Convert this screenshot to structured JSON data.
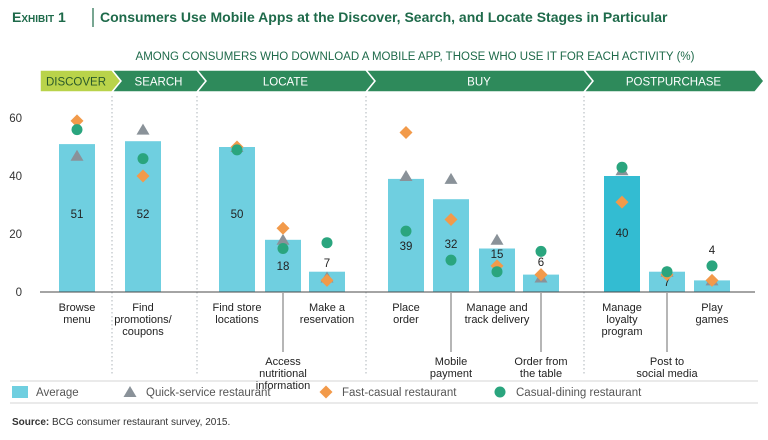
{
  "exhibit": {
    "label": "Exhibit 1",
    "title": "Consumers Use Mobile Apps at the Discover, Search, and Locate Stages in Particular"
  },
  "subtitle": "AMONG CONSUMERS WHO DOWNLOAD A MOBILE APP, THOSE WHO USE IT FOR EACH ACTIVITY (%)",
  "stages": [
    "DISCOVER",
    "SEARCH",
    "LOCATE",
    "BUY",
    "POSTPURCHASE"
  ],
  "source": {
    "label": "Source:",
    "text": " BCG consumer restaurant survey, 2015."
  },
  "colors": {
    "bar": "#6fcfe0",
    "bar_alt": "#33bcd2",
    "quick_service": "#8a9299",
    "fast_casual": "#f29a4a",
    "casual_dining": "#2aa57e",
    "chevron": "#2e8a5b",
    "chevron_first": "#b9d34a",
    "title_accent": "#1e6a4a"
  },
  "chart_data": {
    "type": "bar",
    "categories": [
      [
        "Browse",
        "menu"
      ],
      [
        "Find",
        "promotions/",
        "coupons"
      ],
      [
        "Find store",
        "locations"
      ],
      [
        "Access",
        "nutritional",
        "information"
      ],
      [
        "Make a",
        "reservation"
      ],
      [
        "Place",
        "order"
      ],
      [
        "Mobile",
        "payment"
      ],
      [
        "Manage and",
        "track delivery"
      ],
      [
        "Order from",
        "the table"
      ],
      [
        "Manage",
        "loyalty",
        "program"
      ],
      [
        "Post to",
        "social media"
      ],
      [
        "Play",
        "games"
      ]
    ],
    "series": [
      {
        "name": "Average",
        "type": "bar",
        "values": [
          51,
          52,
          50,
          18,
          7,
          39,
          32,
          15,
          6,
          40,
          7,
          4
        ]
      },
      {
        "name": "Quick-service restaurant",
        "marker": "triangle",
        "values": [
          47,
          56,
          50,
          18,
          5,
          40,
          39,
          18,
          5,
          42,
          7,
          4
        ]
      },
      {
        "name": "Fast-casual restaurant",
        "marker": "diamond",
        "values": [
          59,
          40,
          50,
          22,
          4,
          55,
          25,
          9,
          6,
          31,
          6,
          4
        ]
      },
      {
        "name": "Casual-dining restaurant",
        "marker": "circle",
        "values": [
          56,
          46,
          49,
          15,
          17,
          21,
          11,
          7,
          14,
          43,
          7,
          9
        ]
      }
    ],
    "data_labels": [
      "51",
      "52",
      "50",
      "18",
      "7",
      "39",
      "32",
      "15",
      "6",
      "40",
      "7",
      "4"
    ],
    "xlabel": "",
    "ylabel": "",
    "ylim": [
      0,
      60
    ],
    "yticks": [
      0,
      20,
      40,
      60
    ],
    "grid": false,
    "legend_position": "bottom"
  }
}
